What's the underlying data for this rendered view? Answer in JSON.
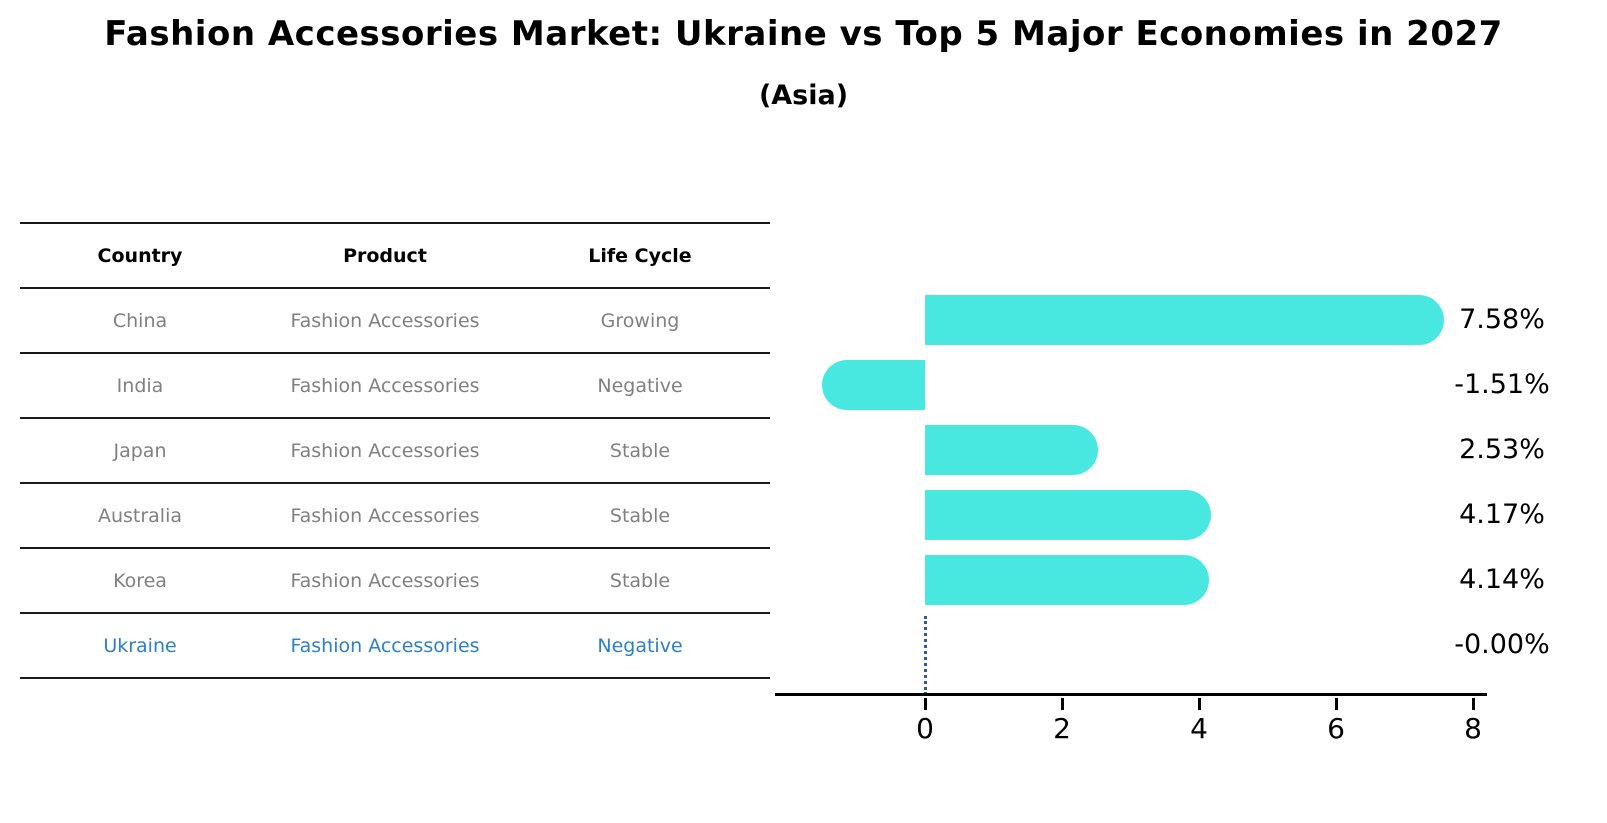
{
  "table": {
    "headers": [
      "Country",
      "Product",
      "Life Cycle"
    ],
    "rows": [
      {
        "country": "China",
        "product": "Fashion Accessories",
        "life_cycle": "Growing",
        "highlighted": false
      },
      {
        "country": "India",
        "product": "Fashion Accessories",
        "life_cycle": "Negative",
        "highlighted": false
      },
      {
        "country": "Japan",
        "product": "Fashion Accessories",
        "life_cycle": "Stable",
        "highlighted": false
      },
      {
        "country": "Australia",
        "product": "Fashion Accessories",
        "life_cycle": "Stable",
        "highlighted": false
      },
      {
        "country": "Korea",
        "product": "Fashion Accessories",
        "life_cycle": "Stable",
        "highlighted": false
      },
      {
        "country": "Ukraine",
        "product": "Fashion Accessories",
        "life_cycle": "Negative",
        "highlighted": true
      }
    ]
  },
  "chart_data": {
    "type": "bar",
    "orientation": "horizontal",
    "title": "Fashion Accessories Market: Ukraine vs Top 5 Major Economies in 2027",
    "subtitle": "(Asia)",
    "categories": [
      "China",
      "India",
      "Japan",
      "Australia",
      "Korea",
      "Ukraine"
    ],
    "values": [
      7.58,
      -1.51,
      2.53,
      4.17,
      4.14,
      -0.0
    ],
    "value_labels": [
      "7.58%",
      "-1.51%",
      "2.53%",
      "4.17%",
      "4.14%",
      "-0.00%"
    ],
    "xticks": [
      0,
      2,
      4,
      6,
      8
    ],
    "xlim": [
      -2.2,
      8.6
    ],
    "grid": false,
    "legend": "none",
    "bar_color": "#48E8E1",
    "zero_marker_index": 5,
    "zero_marker_color": "#2D5AA0",
    "highlight_text_color": "#2C80C6",
    "axis_color": "#000000",
    "table_text_color": "#808080",
    "rule_color": "#1a1a1a"
  }
}
